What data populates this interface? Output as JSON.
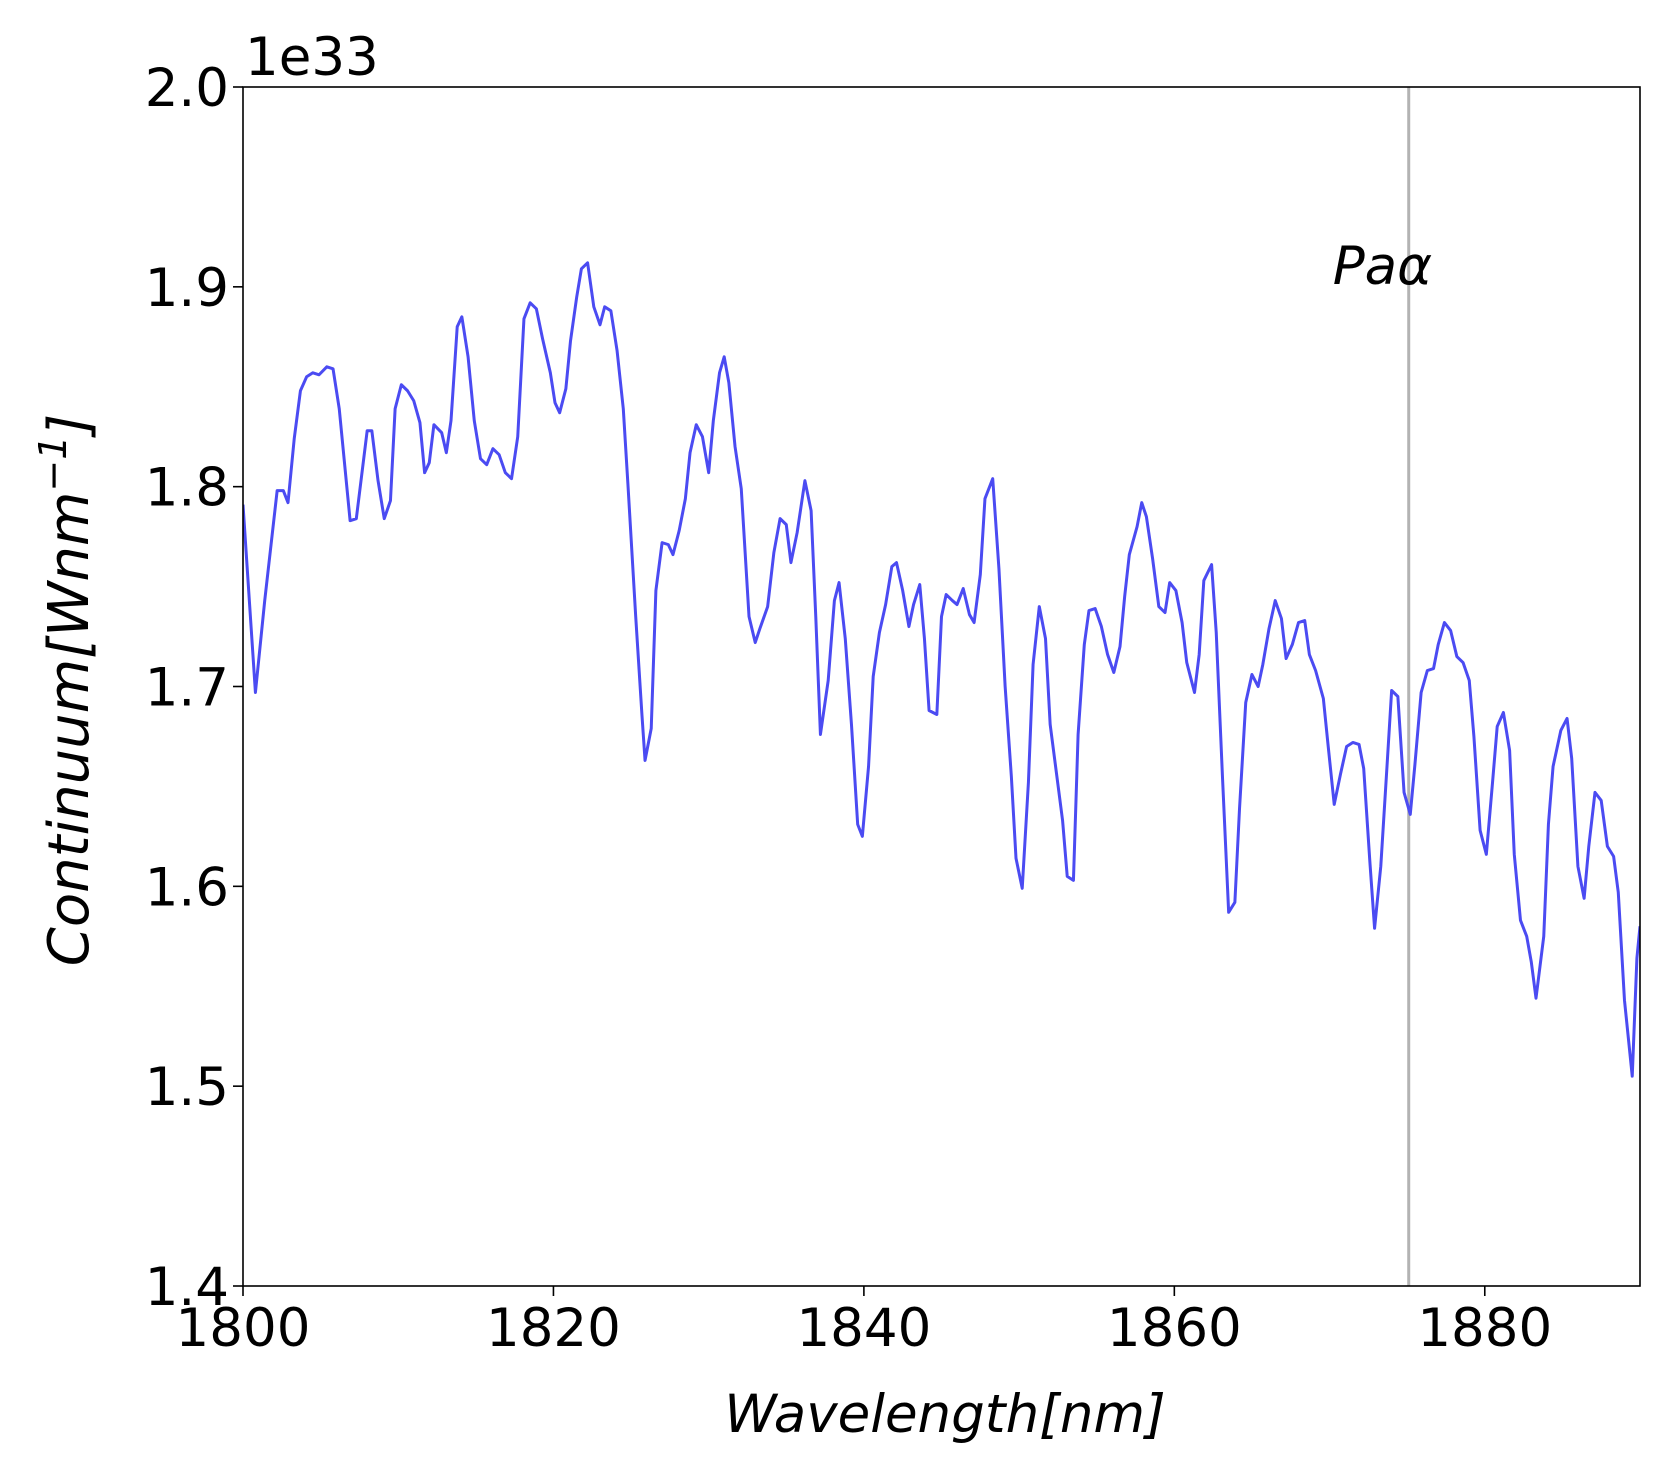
{
  "chart_data": {
    "type": "line",
    "x_label": "Wavelength[nm]",
    "y_label_parts": [
      "Continuum[Wnm",
      "−1",
      "]"
    ],
    "offset_label": "1e33",
    "color": "#4b4bf2",
    "x": [
      1800.0,
      1800.8,
      1801.4,
      1802.2,
      1802.6,
      1802.9,
      1803.3,
      1803.7,
      1804.1,
      1804.5,
      1804.9,
      1805.4,
      1805.8,
      1806.2,
      1806.9,
      1807.3,
      1808.0,
      1808.3,
      1808.7,
      1809.1,
      1809.5,
      1809.8,
      1810.2,
      1810.6,
      1811.0,
      1811.4,
      1811.7,
      1812.0,
      1812.3,
      1812.8,
      1813.1,
      1813.4,
      1813.8,
      1814.1,
      1814.5,
      1814.9,
      1815.3,
      1815.7,
      1816.1,
      1816.5,
      1816.9,
      1817.3,
      1817.7,
      1818.1,
      1818.5,
      1818.9,
      1819.3,
      1819.8,
      1820.1,
      1820.4,
      1820.8,
      1821.1,
      1821.5,
      1821.8,
      1822.2,
      1822.6,
      1823.0,
      1823.3,
      1823.7,
      1824.1,
      1824.5,
      1824.8,
      1825.3,
      1825.7,
      1825.9,
      1826.3,
      1826.6,
      1827.0,
      1827.4,
      1827.7,
      1828.1,
      1828.5,
      1828.8,
      1829.2,
      1829.6,
      1830.0,
      1830.3,
      1830.7,
      1831.0,
      1831.3,
      1831.7,
      1832.1,
      1832.6,
      1833.0,
      1833.3,
      1833.8,
      1834.2,
      1834.6,
      1835.0,
      1835.3,
      1835.7,
      1836.2,
      1836.6,
      1836.9,
      1837.2,
      1837.7,
      1838.1,
      1838.4,
      1838.8,
      1839.2,
      1839.6,
      1839.9,
      1840.3,
      1840.6,
      1841.0,
      1841.4,
      1841.8,
      1842.1,
      1842.5,
      1842.9,
      1843.2,
      1843.6,
      1843.9,
      1844.2,
      1844.7,
      1845.0,
      1845.3,
      1845.7,
      1846.0,
      1846.4,
      1846.8,
      1847.1,
      1847.5,
      1847.8,
      1848.3,
      1848.7,
      1849.1,
      1849.5,
      1849.8,
      1850.2,
      1850.6,
      1850.9,
      1851.3,
      1851.7,
      1852.0,
      1852.4,
      1852.8,
      1853.1,
      1853.5,
      1853.8,
      1854.2,
      1854.5,
      1854.9,
      1855.3,
      1855.7,
      1856.1,
      1856.5,
      1856.8,
      1857.1,
      1857.6,
      1857.9,
      1858.2,
      1858.6,
      1859.0,
      1859.4,
      1859.7,
      1860.1,
      1860.5,
      1860.8,
      1861.3,
      1861.6,
      1861.9,
      1862.4,
      1862.7,
      1863.1,
      1863.5,
      1863.9,
      1864.2,
      1864.6,
      1865.0,
      1865.4,
      1865.7,
      1866.1,
      1866.5,
      1866.9,
      1867.2,
      1867.6,
      1868.0,
      1868.4,
      1868.7,
      1869.1,
      1869.6,
      1869.9,
      1870.3,
      1870.7,
      1871.1,
      1871.5,
      1871.9,
      1872.2,
      1872.6,
      1872.9,
      1873.3,
      1873.7,
      1874.0,
      1874.4,
      1874.8,
      1875.2,
      1875.5,
      1875.9,
      1876.3,
      1876.7,
      1877.0,
      1877.4,
      1877.8,
      1878.2,
      1878.6,
      1879.0,
      1879.3,
      1879.7,
      1880.1,
      1880.5,
      1880.8,
      1881.2,
      1881.6,
      1881.9,
      1882.3,
      1882.7,
      1883.0,
      1883.3,
      1883.8,
      1884.1,
      1884.4,
      1884.9,
      1885.3,
      1885.6,
      1886.0,
      1886.4,
      1886.7,
      1887.1,
      1887.5,
      1887.9,
      1888.3,
      1888.6,
      1889.0,
      1889.5,
      1889.8,
      1890.0
    ],
    "values": [
      1.791,
      1.697,
      1.743,
      1.798,
      1.798,
      1.792,
      1.824,
      1.848,
      1.855,
      1.857,
      1.856,
      1.86,
      1.859,
      1.839,
      1.783,
      1.784,
      1.828,
      1.828,
      1.803,
      1.784,
      1.793,
      1.839,
      1.851,
      1.848,
      1.843,
      1.832,
      1.807,
      1.812,
      1.831,
      1.827,
      1.817,
      1.833,
      1.88,
      1.885,
      1.865,
      1.833,
      1.814,
      1.811,
      1.819,
      1.816,
      1.807,
      1.804,
      1.825,
      1.884,
      1.892,
      1.889,
      1.874,
      1.857,
      1.842,
      1.837,
      1.849,
      1.873,
      1.895,
      1.909,
      1.912,
      1.89,
      1.881,
      1.89,
      1.888,
      1.868,
      1.839,
      1.801,
      1.735,
      1.686,
      1.663,
      1.679,
      1.748,
      1.772,
      1.771,
      1.766,
      1.778,
      1.794,
      1.817,
      1.831,
      1.825,
      1.807,
      1.833,
      1.857,
      1.865,
      1.852,
      1.82,
      1.799,
      1.735,
      1.722,
      1.729,
      1.74,
      1.767,
      1.784,
      1.781,
      1.762,
      1.777,
      1.803,
      1.788,
      1.735,
      1.676,
      1.703,
      1.743,
      1.752,
      1.724,
      1.681,
      1.631,
      1.625,
      1.66,
      1.705,
      1.727,
      1.741,
      1.76,
      1.762,
      1.748,
      1.73,
      1.741,
      1.751,
      1.724,
      1.688,
      1.686,
      1.735,
      1.746,
      1.743,
      1.741,
      1.749,
      1.736,
      1.732,
      1.756,
      1.794,
      1.804,
      1.759,
      1.7,
      1.655,
      1.614,
      1.599,
      1.652,
      1.711,
      1.74,
      1.724,
      1.681,
      1.657,
      1.633,
      1.605,
      1.603,
      1.676,
      1.721,
      1.738,
      1.739,
      1.73,
      1.716,
      1.707,
      1.72,
      1.745,
      1.766,
      1.78,
      1.792,
      1.785,
      1.764,
      1.74,
      1.737,
      1.752,
      1.748,
      1.732,
      1.712,
      1.697,
      1.716,
      1.753,
      1.761,
      1.727,
      1.655,
      1.587,
      1.592,
      1.639,
      1.692,
      1.706,
      1.7,
      1.711,
      1.729,
      1.743,
      1.734,
      1.714,
      1.721,
      1.732,
      1.733,
      1.716,
      1.708,
      1.694,
      1.671,
      1.641,
      1.656,
      1.67,
      1.672,
      1.671,
      1.659,
      1.612,
      1.579,
      1.61,
      1.66,
      1.698,
      1.695,
      1.647,
      1.636,
      1.661,
      1.697,
      1.708,
      1.709,
      1.721,
      1.732,
      1.728,
      1.715,
      1.712,
      1.703,
      1.675,
      1.628,
      1.616,
      1.652,
      1.68,
      1.687,
      1.668,
      1.616,
      1.583,
      1.575,
      1.562,
      1.544,
      1.575,
      1.631,
      1.66,
      1.678,
      1.684,
      1.664,
      1.61,
      1.594,
      1.62,
      1.647,
      1.643,
      1.62,
      1.615,
      1.597,
      1.543,
      1.505,
      1.564,
      1.58
    ],
    "xlim": [
      1800,
      1890
    ],
    "xticks": [
      1800,
      1820,
      1840,
      1860,
      1880
    ],
    "ylim": [
      1.4,
      2.0
    ],
    "yticks": [
      1.4,
      1.5,
      1.6,
      1.7,
      1.8,
      1.9,
      {
        "value": 2.0,
        "label": "2.0"
      }
    ],
    "vline": {
      "x": 1875.1,
      "color": "#b3b3b3",
      "label": "Paα"
    },
    "grid": false
  }
}
